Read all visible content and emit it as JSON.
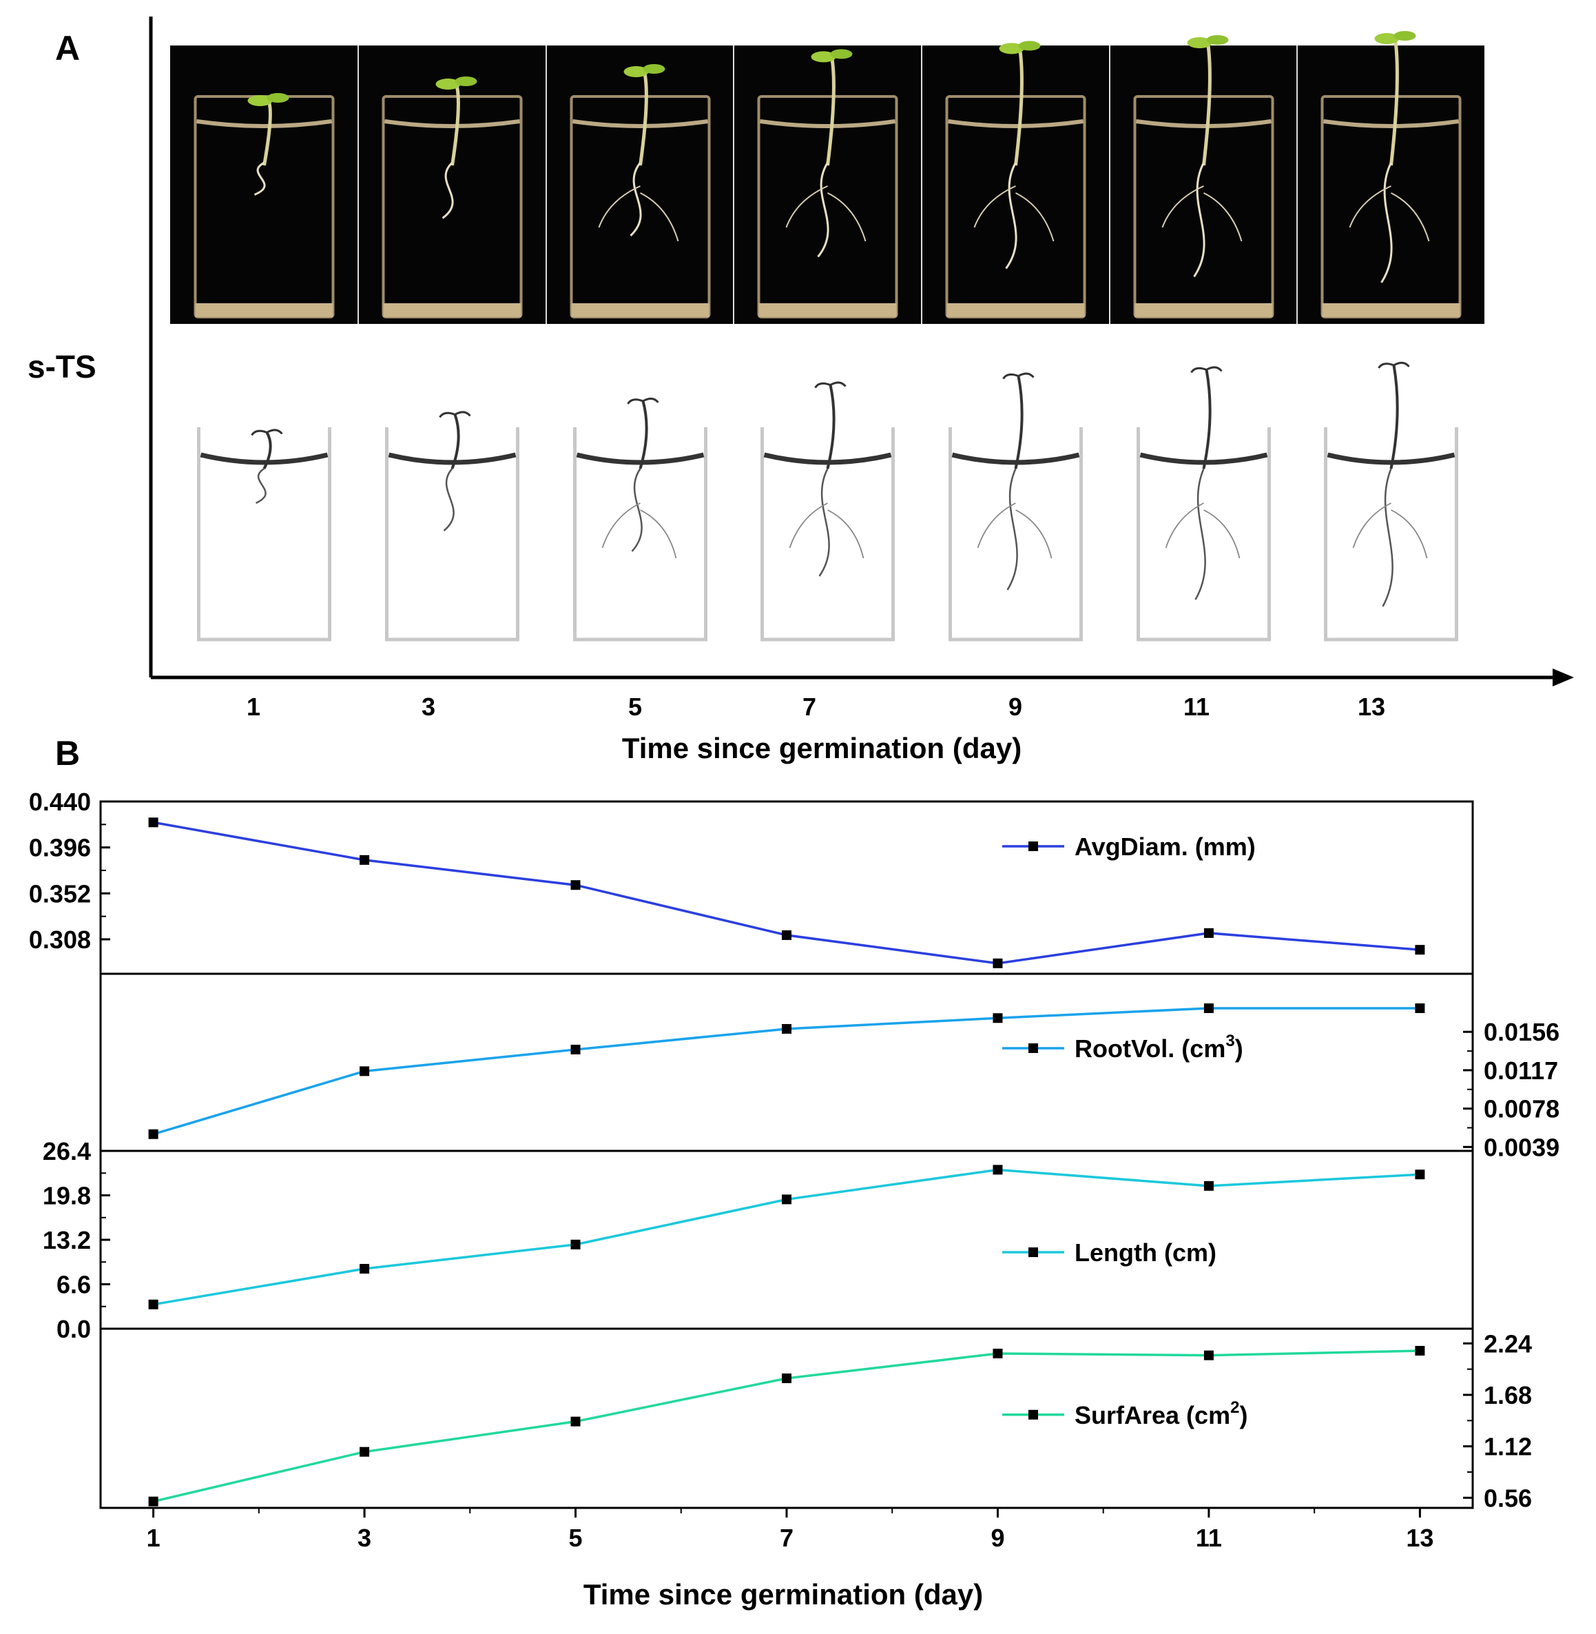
{
  "panel_a": {
    "label": "A",
    "row_label": "s-TS",
    "days": [
      "1",
      "3",
      "5",
      "7",
      "9",
      "11",
      "13"
    ],
    "xlabel": "Time since germination (day)"
  },
  "panel_b": {
    "label": "B"
  },
  "chart_data": {
    "type": "line",
    "title": "",
    "xlabel": "Time since germination (day)",
    "x": [
      1,
      3,
      5,
      7,
      9,
      11,
      13
    ],
    "xticks": [
      "1",
      "3",
      "5",
      "7",
      "9",
      "11",
      "13"
    ],
    "xlim": [
      0.5,
      13.5
    ],
    "series": [
      {
        "name": "AvgDiam. (mm)",
        "legend_main": "AvgDiam. (mm)",
        "legend_sup": "",
        "legend_tail": "",
        "color": "#2b3fe0",
        "axis_side": "left",
        "ylim": [
          0.275,
          0.44
        ],
        "ticks": [
          0.308,
          0.352,
          0.396,
          0.44
        ],
        "tick_labels": [
          "0.308",
          "0.352",
          "0.396",
          "0.440"
        ],
        "values": [
          0.42,
          0.384,
          0.36,
          0.312,
          0.285,
          0.314,
          0.298
        ]
      },
      {
        "name": "RootVol. (cm3)",
        "legend_main": "RootVol. (cm",
        "legend_sup": "3",
        "legend_tail": ")",
        "color": "#1aa3ec",
        "axis_side": "right",
        "ylim": [
          0.0035,
          0.0215
        ],
        "ticks": [
          0.0039,
          0.0078,
          0.0117,
          0.0156
        ],
        "tick_labels": [
          "0.0039",
          "0.0078",
          "0.0117",
          "0.0156"
        ],
        "values": [
          0.0052,
          0.0116,
          0.0138,
          0.0159,
          0.017,
          0.018,
          0.018
        ]
      },
      {
        "name": "Length (cm)",
        "legend_main": "Length (cm)",
        "legend_sup": "",
        "legend_tail": "",
        "color": "#1cc8dc",
        "axis_side": "left",
        "ylim": [
          0,
          26.4
        ],
        "ticks": [
          0,
          6.6,
          13.2,
          19.8,
          26.4
        ],
        "tick_labels": [
          "0.0",
          "6.6",
          "13.2",
          "19.8",
          "26.4"
        ],
        "values": [
          3.6,
          8.9,
          12.5,
          19.2,
          23.6,
          21.2,
          22.9
        ]
      },
      {
        "name": "SurfArea (cm2)",
        "legend_main": "SurfArea (cm",
        "legend_sup": "2",
        "legend_tail": ")",
        "color": "#22d99a",
        "axis_side": "right",
        "ylim": [
          0.45,
          2.4
        ],
        "ticks": [
          0.56,
          1.12,
          1.68,
          2.24
        ],
        "tick_labels": [
          "0.56",
          "1.12",
          "1.68",
          "2.24"
        ],
        "values": [
          0.52,
          1.06,
          1.39,
          1.86,
          2.13,
          2.11,
          2.16
        ]
      }
    ]
  }
}
